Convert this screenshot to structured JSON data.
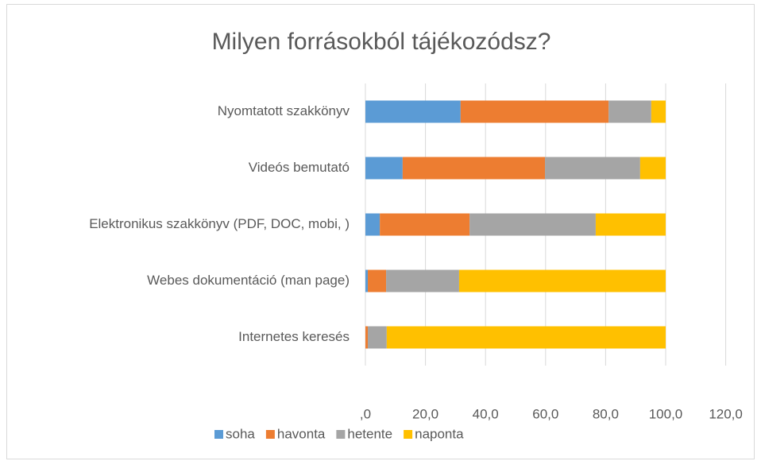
{
  "chart_data": {
    "type": "stacked-bar-horizontal",
    "title": "Milyen forrásokból tájékozódsz?",
    "categories": [
      "Nyomtatott szakkönyv",
      "Videós bemutató",
      "Elektronikus szakkönyv (PDF, DOC, mobi, )",
      "Webes dokumentáció (man page)",
      "Internetes keresés"
    ],
    "series": [
      {
        "name": "soha",
        "color": "#5b9bd5",
        "values": [
          31.7,
          12.4,
          4.8,
          0.8,
          0
        ]
      },
      {
        "name": "havonta",
        "color": "#ed7d31",
        "values": [
          49.3,
          47.4,
          29.9,
          6.1,
          0.8
        ]
      },
      {
        "name": "hetente",
        "color": "#a5a5a5",
        "values": [
          14.2,
          31.7,
          42.0,
          24.3,
          6.3
        ]
      },
      {
        "name": "naponta",
        "color": "#ffc000",
        "values": [
          4.8,
          8.5,
          23.3,
          68.8,
          92.9
        ]
      }
    ],
    "xlim": [
      0,
      120
    ],
    "xticks": [
      {
        "value": 0,
        "label": ",0"
      },
      {
        "value": 20,
        "label": "20,0"
      },
      {
        "value": 40,
        "label": "40,0"
      },
      {
        "value": 60,
        "label": "60,0"
      },
      {
        "value": 80,
        "label": "80,0"
      },
      {
        "value": 100,
        "label": "100,0"
      },
      {
        "value": 120,
        "label": "120,0"
      }
    ],
    "grid": true,
    "legend": "bottom"
  }
}
